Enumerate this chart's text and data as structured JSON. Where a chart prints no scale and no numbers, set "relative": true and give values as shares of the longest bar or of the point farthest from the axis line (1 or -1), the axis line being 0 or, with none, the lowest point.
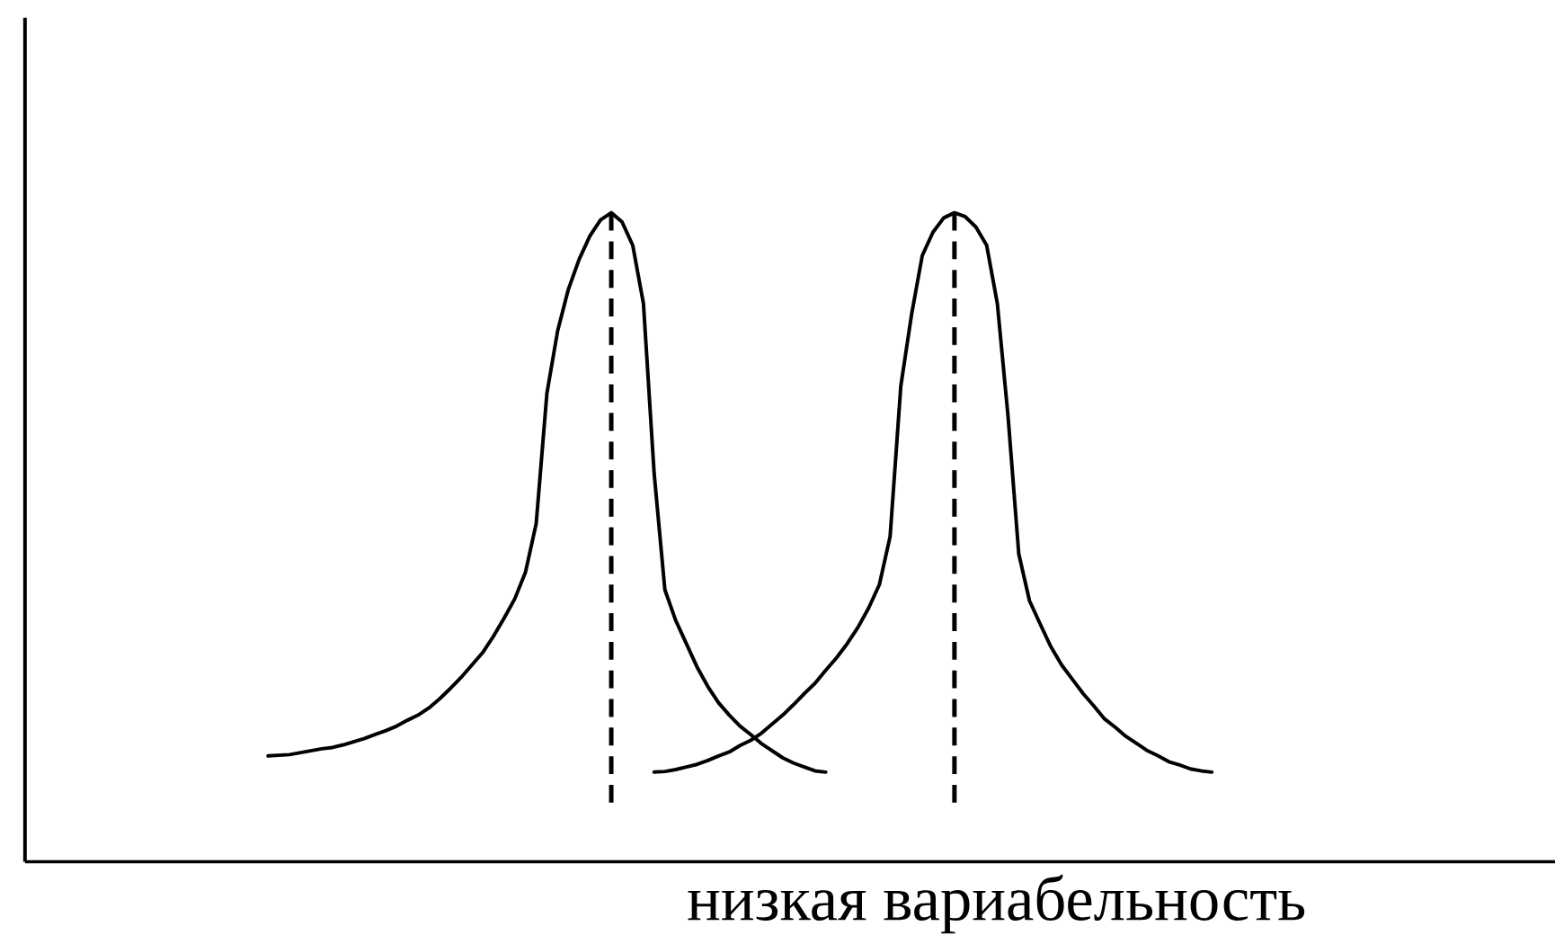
{
  "chart_data": {
    "type": "line",
    "relative": true,
    "xlabel": "низкая вариабельность",
    "categories": [
      null,
      null,
      null,
      null,
      null,
      null,
      null,
      null,
      null,
      null,
      null,
      null,
      null,
      null,
      null,
      null,
      null,
      null,
      null,
      null,
      null,
      null,
      null,
      null,
      null,
      null,
      null,
      null,
      null,
      null,
      null,
      null,
      null,
      null,
      null,
      null,
      null,
      null,
      null,
      null,
      null,
      null,
      null,
      null,
      null,
      null,
      null,
      null,
      null,
      null,
      null,
      null,
      null,
      null,
      null,
      null,
      null,
      null,
      null,
      null,
      null,
      null,
      null,
      null,
      null,
      null,
      null,
      null,
      null,
      null,
      null,
      null,
      null,
      null,
      null,
      null,
      null,
      null,
      null,
      null,
      null,
      null,
      null,
      null,
      null,
      null,
      null,
      null,
      null
    ],
    "series": [
      {
        "color": "#000000",
        "values": [
          0.163,
          0.164,
          0.165,
          0.168,
          0.171,
          0.174,
          0.176,
          0.18,
          0.185,
          0.19,
          0.196,
          0.202,
          0.209,
          0.218,
          0.226,
          0.237,
          0.251,
          0.267,
          0.284,
          0.303,
          0.322,
          0.347,
          0.375,
          0.405,
          0.446,
          0.521,
          0.722,
          0.818,
          0.882,
          0.928,
          0.964,
          0.989,
          1,
          0.986,
          0.95,
          0.86,
          0.598,
          0.419,
          0.372,
          0.336,
          0.3,
          0.27,
          0.245,
          0.226,
          0.209,
          0.196,
          0.182,
          0.171,
          0.16,
          0.152,
          0.146,
          0.14,
          0.138,
          null,
          null,
          null,
          null,
          null,
          null,
          null,
          null,
          null,
          null,
          null,
          null,
          null,
          null,
          null,
          null,
          null,
          null,
          null,
          null,
          null,
          null,
          null,
          null,
          null,
          null,
          null,
          null,
          null,
          null,
          null,
          null,
          null,
          null,
          null,
          null
        ]
      },
      {
        "color": "#000000",
        "values": [
          null,
          null,
          null,
          null,
          null,
          null,
          null,
          null,
          null,
          null,
          null,
          null,
          null,
          null,
          null,
          null,
          null,
          null,
          null,
          null,
          null,
          null,
          null,
          null,
          null,
          null,
          null,
          null,
          null,
          null,
          null,
          null,
          null,
          null,
          null,
          null,
          0.138,
          0.139,
          0.142,
          0.146,
          0.15,
          0.156,
          0.163,
          0.169,
          0.179,
          0.187,
          0.198,
          0.212,
          0.226,
          0.242,
          0.259,
          0.275,
          0.295,
          0.314,
          0.336,
          0.361,
          0.391,
          0.427,
          0.501,
          0.733,
          0.843,
          0.934,
          0.97,
          0.992,
          1,
          0.994,
          0.978,
          0.95,
          0.86,
          0.686,
          0.474,
          0.402,
          0.366,
          0.331,
          0.303,
          0.281,
          0.259,
          0.24,
          0.22,
          0.207,
          0.193,
          0.182,
          0.171,
          0.163,
          0.154,
          0.149,
          0.143,
          0.14,
          0.138
        ]
      }
    ]
  }
}
